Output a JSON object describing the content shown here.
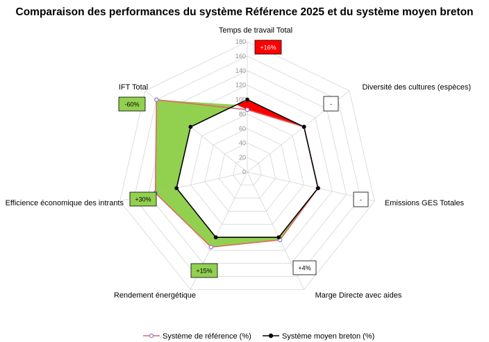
{
  "chart_data": {
    "type": "radar",
    "title": "Comparaison  des performances  du système  Référence 2025 et du système moyen breton",
    "axes": [
      "Temps de travail Total",
      "Diversité des cultures (espèces)",
      "Emissions GES Totales",
      "Marge Directe avec aides",
      "Rendement énergétique",
      "Efficience économique des intrants",
      "IFT Total"
    ],
    "ticks": [
      0,
      20,
      40,
      60,
      80,
      100,
      120,
      140,
      160,
      180
    ],
    "rlim": [
      0,
      180
    ],
    "series": [
      {
        "name": "Système de référence (%)",
        "values": [
          86,
          100,
          100,
          104,
          115,
          130,
          160
        ]
      },
      {
        "name": "Système moyen breton (%)",
        "values": [
          100,
          100,
          100,
          100,
          100,
          100,
          100
        ]
      }
    ],
    "badges": [
      {
        "text": "+16%",
        "color": "#ff0000",
        "text_color": "#ffffff"
      },
      {
        "text": "-",
        "color": "#ffffff",
        "text_color": "#000000"
      },
      {
        "text": "-",
        "color": "#ffffff",
        "text_color": "#000000"
      },
      {
        "text": "+4%",
        "color": "#ffffff",
        "text_color": "#000000"
      },
      {
        "text": "+15%",
        "color": "#92d050",
        "text_color": "#000000"
      },
      {
        "text": "+30%",
        "color": "#92d050",
        "text_color": "#000000"
      },
      {
        "text": "-60%",
        "color": "#92d050",
        "text_color": "#000000"
      }
    ],
    "colors": {
      "reference_line": "#e06666",
      "reference_marker": "#8e7cc3",
      "breton_line": "#000000",
      "fill_better": "#92d050",
      "fill_worse": "#ff0000",
      "grid": "#d9d9d9"
    },
    "grid": true,
    "legend": "bottom"
  }
}
